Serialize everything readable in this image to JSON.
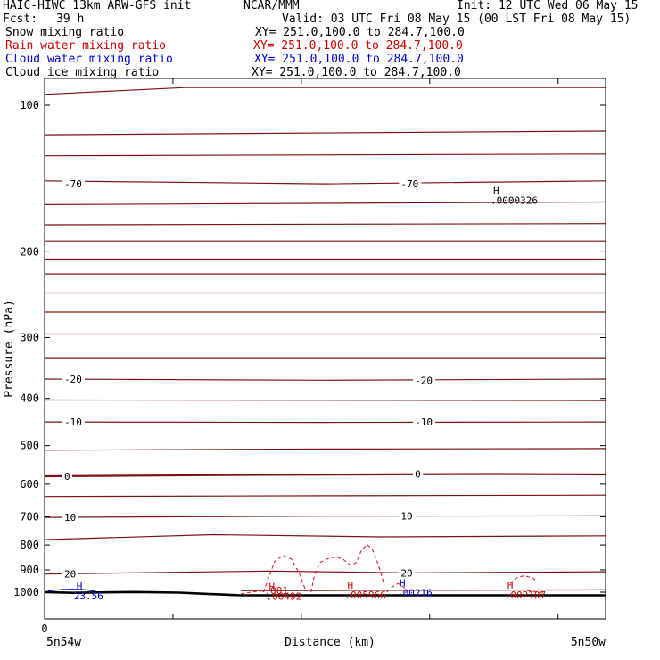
{
  "header": {
    "model": "HAIC-HIWC 13km ARW-GFS init",
    "center": "NCAR/MMM",
    "init": "Init: 12 UTC Wed 06 May 15",
    "fcst_label": "Fcst:",
    "fcst_value": "39 h",
    "valid": "Valid: 03 UTC Fri 08 May 15 (00 LST Fri 08 May 15)"
  },
  "fields": [
    {
      "name": "Snow mixing ratio",
      "xy": "XY= 251.0,100.0 to 284.7,100.0",
      "color": "#000000"
    },
    {
      "name": "Rain water mixing ratio",
      "xy": "XY= 251.0,100.0 to 284.7,100.0",
      "color": "#cc0000"
    },
    {
      "name": "Cloud water mixing ratio",
      "xy": "XY= 251.0,100.0 to 284.7,100.0",
      "color": "#0000cc"
    },
    {
      "name": "Cloud ice mixing ratio",
      "xy": "XY= 251.0,100.0 to 284.7,100.0",
      "color": "#000000"
    }
  ],
  "axes": {
    "ylabel": "Pressure (hPa)",
    "xlabel": "Distance (km)",
    "x_zero": "0",
    "left_loc": "5n54w",
    "right_loc": "5n50w"
  },
  "chart_data": {
    "type": "line",
    "y_scale": "log",
    "ylim": [
      1050,
      70
    ],
    "y_ticks": [
      100,
      200,
      300,
      400,
      500,
      600,
      700,
      800,
      900,
      1000
    ],
    "isotherm_color": "#7a1414",
    "rain_color": "#dd2222",
    "cloud_color": "#0000cc",
    "isotherms": [
      {
        "x": [
          0,
          0.25,
          1
        ],
        "p": [
          95,
          92,
          92
        ]
      },
      {
        "x": [
          0,
          1
        ],
        "p": [
          115,
          113
        ]
      },
      {
        "x": [
          0,
          1
        ],
        "p": [
          127,
          126
        ]
      },
      {
        "x": [
          0,
          0.5,
          1
        ],
        "p": [
          143,
          145,
          143
        ]
      },
      {
        "x": [
          0,
          1
        ],
        "p": [
          160,
          158
        ]
      },
      {
        "x": [
          0,
          1
        ],
        "p": [
          176,
          175
        ]
      },
      {
        "x": [
          0,
          1
        ],
        "p": [
          190,
          190
        ]
      },
      {
        "x": [
          0,
          1
        ],
        "p": [
          207,
          207
        ]
      },
      {
        "x": [
          0,
          1
        ],
        "p": [
          222,
          222
        ]
      },
      {
        "x": [
          0,
          1
        ],
        "p": [
          243,
          243
        ]
      },
      {
        "x": [
          0,
          1
        ],
        "p": [
          266,
          266
        ]
      },
      {
        "x": [
          0,
          1
        ],
        "p": [
          295,
          295
        ]
      },
      {
        "x": [
          0,
          1
        ],
        "p": [
          330,
          330
        ]
      },
      {
        "x": [
          0,
          0.5,
          1
        ],
        "p": [
          365,
          367,
          365
        ]
      },
      {
        "x": [
          0,
          1
        ],
        "p": [
          403,
          404
        ]
      },
      {
        "x": [
          0,
          0.5,
          1
        ],
        "p": [
          447,
          448,
          447
        ]
      },
      {
        "x": [
          0,
          0.5,
          1
        ],
        "p": [
          511,
          508,
          507
        ]
      },
      {
        "x": [
          0,
          0.4,
          0.8,
          1
        ],
        "p": [
          578,
          574,
          572,
          573
        ],
        "bold": true
      },
      {
        "x": [
          0,
          0.5,
          1
        ],
        "p": [
          636,
          634,
          632
        ]
      },
      {
        "x": [
          0,
          0.5,
          1
        ],
        "p": [
          702,
          698,
          697
        ]
      },
      {
        "x": [
          0,
          0.3,
          0.6,
          1
        ],
        "p": [
          780,
          762,
          770,
          766
        ]
      },
      {
        "x": [
          0,
          0.4,
          0.65,
          1
        ],
        "p": [
          918,
          905,
          913,
          908
        ]
      },
      {
        "x": [
          0.35,
          0.5,
          1
        ],
        "p": [
          993,
          992,
          989
        ]
      }
    ],
    "contour_labels": [
      {
        "text": "-70",
        "x": 0.035,
        "p": 145
      },
      {
        "text": "-70",
        "x": 0.635,
        "p": 145
      },
      {
        "text": "-20",
        "x": 0.035,
        "p": 365
      },
      {
        "text": "-20",
        "x": 0.66,
        "p": 367
      },
      {
        "text": "-10",
        "x": 0.035,
        "p": 447
      },
      {
        "text": "-10",
        "x": 0.66,
        "p": 447
      },
      {
        "text": "0",
        "x": 0.035,
        "p": 578
      },
      {
        "text": "0",
        "x": 0.66,
        "p": 572
      },
      {
        "text": "10",
        "x": 0.035,
        "p": 702
      },
      {
        "text": "10",
        "x": 0.635,
        "p": 698
      },
      {
        "text": "20",
        "x": 0.035,
        "p": 918
      },
      {
        "text": "20",
        "x": 0.635,
        "p": 913
      }
    ],
    "rain_contours": [
      {
        "x": [
          0.39,
          0.4,
          0.41,
          0.425,
          0.44,
          0.455,
          0.465
        ],
        "p": [
          1000,
          930,
          865,
          840,
          855,
          920,
          990
        ]
      },
      {
        "x": [
          0.475,
          0.48,
          0.49,
          0.51,
          0.53,
          0.545,
          0.555,
          0.565,
          0.575,
          0.585,
          0.595,
          0.605
        ],
        "p": [
          1000,
          935,
          870,
          848,
          852,
          880,
          870,
          820,
          798,
          820,
          880,
          960
        ]
      },
      {
        "x": [
          0.61,
          0.62,
          0.63,
          0.64,
          0.645
        ],
        "p": [
          1000,
          975,
          960,
          975,
          1000
        ]
      },
      {
        "x": [
          0.83,
          0.84,
          0.855,
          0.87,
          0.88
        ],
        "p": [
          960,
          935,
          925,
          935,
          955
        ]
      },
      {
        "x": [
          0.35,
          0.375,
          0.4
        ],
        "p": [
          1008,
          997,
          992
        ]
      },
      {
        "x": [
          0.86,
          0.89
        ],
        "p": [
          992,
          1005
        ]
      }
    ],
    "cloud_contours": [
      {
        "x": [
          0.0,
          0.01,
          0.03,
          0.05,
          0.07,
          0.085,
          0.095
        ],
        "p": [
          1000,
          993,
          988,
          986,
          988,
          993,
          1000
        ]
      }
    ],
    "terrain": {
      "x": [
        0,
        0.05,
        0.16,
        0.24,
        0.29,
        0.35,
        0.45,
        1.0
      ],
      "p": [
        1000,
        1003,
        999,
        1002,
        1008,
        1015,
        1015,
        1015
      ]
    },
    "maxima": [
      {
        "mark": "H",
        "value": ".0000326",
        "x": 0.795,
        "p": 152,
        "color": "#000000"
      },
      {
        "mark": "H",
        "value": "23.56",
        "x": 0.052,
        "p": 988,
        "color": "#0000cc"
      },
      {
        "mark": "",
        "value": ".001",
        "x": 0.392,
        "p": 962,
        "color": "#cc0000"
      },
      {
        "mark": "H",
        "value": ".00492",
        "x": 0.395,
        "p": 990,
        "color": "#cc0000"
      },
      {
        "mark": "H",
        "value": ".005966",
        "x": 0.535,
        "p": 983,
        "color": "#cc0000"
      },
      {
        "mark": "H",
        "value": ".00216",
        "x": 0.628,
        "p": 972,
        "color": "#0000cc"
      },
      {
        "mark": "H",
        "value": ".002107",
        "x": 0.82,
        "p": 983,
        "color": "#cc0000"
      }
    ]
  }
}
